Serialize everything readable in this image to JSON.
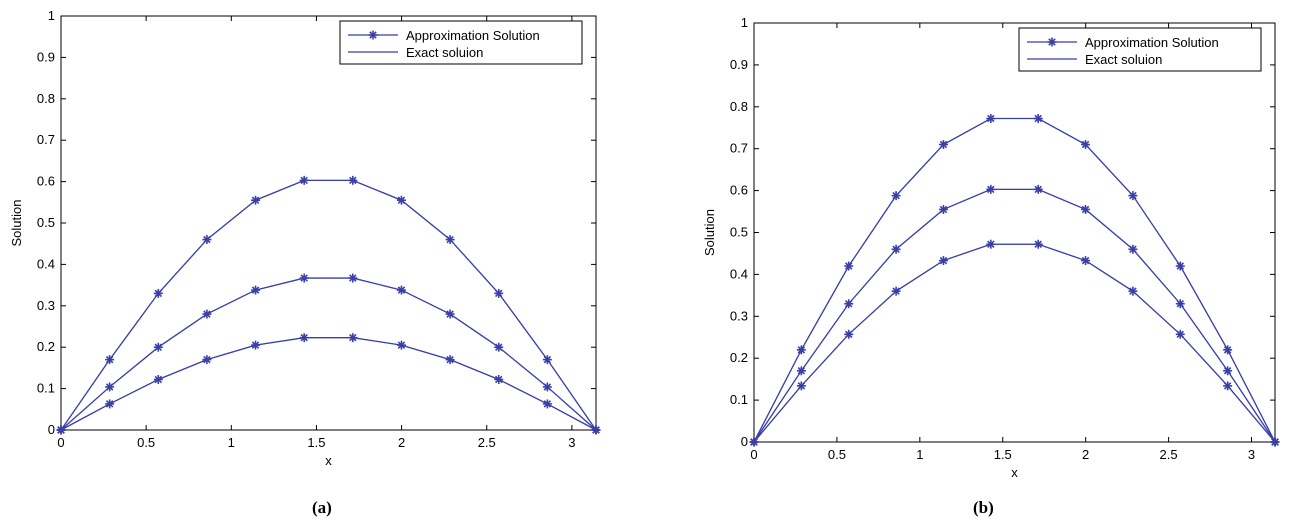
{
  "chart_data": [
    {
      "type": "line",
      "panel_label": "(a)",
      "xlabel": "x",
      "ylabel": "Solution",
      "xlim": [
        0,
        3.1416
      ],
      "ylim": [
        0,
        1
      ],
      "xticks": [
        "0",
        "0.5",
        "1",
        "1.5",
        "2",
        "2.5",
        "3"
      ],
      "yticks": [
        "0",
        "0.1",
        "0.2",
        "0.3",
        "0.4",
        "0.5",
        "0.6",
        "0.7",
        "0.8",
        "0.9",
        "1"
      ],
      "legend": [
        "Approximation Solution",
        "Exact soluion"
      ],
      "legend_position": "top-right",
      "color": "#3a3fa8",
      "x": [
        0,
        0.2856,
        0.5712,
        0.8568,
        1.1424,
        1.428,
        1.7136,
        1.9992,
        2.2848,
        2.5704,
        2.856,
        3.1416
      ],
      "curves": [
        [
          0,
          0.17,
          0.33,
          0.46,
          0.555,
          0.603,
          0.603,
          0.555,
          0.46,
          0.33,
          0.17,
          0
        ],
        [
          0,
          0.104,
          0.2,
          0.28,
          0.338,
          0.367,
          0.367,
          0.338,
          0.28,
          0.2,
          0.104,
          0
        ],
        [
          0,
          0.063,
          0.122,
          0.17,
          0.205,
          0.223,
          0.223,
          0.205,
          0.17,
          0.122,
          0.063,
          0
        ]
      ]
    },
    {
      "type": "line",
      "panel_label": "(b)",
      "xlabel": "x",
      "ylabel": "Solution",
      "xlim": [
        0,
        3.1416
      ],
      "ylim": [
        0,
        1
      ],
      "xticks": [
        "0",
        "0.5",
        "1",
        "1.5",
        "2",
        "2.5",
        "3"
      ],
      "yticks": [
        "0",
        "0.1",
        "0.2",
        "0.3",
        "0.4",
        "0.5",
        "0.6",
        "0.7",
        "0.8",
        "0.9",
        "1"
      ],
      "legend": [
        "Approximation Solution",
        "Exact soluion"
      ],
      "legend_position": "top-right",
      "color": "#3a3fa8",
      "x": [
        0,
        0.2856,
        0.5712,
        0.8568,
        1.1424,
        1.428,
        1.7136,
        1.9992,
        2.2848,
        2.5704,
        2.856,
        3.1416
      ],
      "curves": [
        [
          0,
          0.22,
          0.42,
          0.588,
          0.71,
          0.772,
          0.772,
          0.71,
          0.588,
          0.42,
          0.22,
          0
        ],
        [
          0,
          0.17,
          0.33,
          0.46,
          0.555,
          0.603,
          0.603,
          0.555,
          0.46,
          0.33,
          0.17,
          0
        ],
        [
          0,
          0.134,
          0.257,
          0.36,
          0.433,
          0.472,
          0.472,
          0.433,
          0.36,
          0.257,
          0.134,
          0
        ]
      ]
    }
  ]
}
